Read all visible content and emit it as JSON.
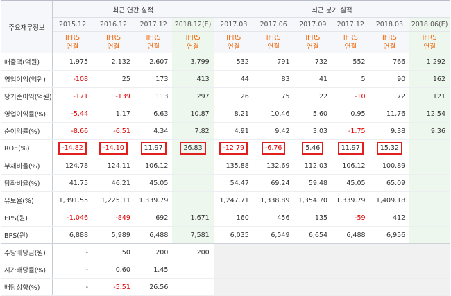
{
  "header": {
    "label": "주요재무정보",
    "annual_group": "최근 연간 실적",
    "quarterly_group": "최근 분기 실적",
    "ifrs_top": "IFRS",
    "ifrs_bottom": "연결"
  },
  "periods": [
    {
      "label": "2015.12",
      "est": false
    },
    {
      "label": "2016.12",
      "est": false
    },
    {
      "label": "2017.12",
      "est": false
    },
    {
      "label": "2018.12(E)",
      "est": true
    },
    {
      "label": "2017.03",
      "est": false
    },
    {
      "label": "2017.06",
      "est": false
    },
    {
      "label": "2017.09",
      "est": false
    },
    {
      "label": "2017.12",
      "est": false
    },
    {
      "label": "2018.03",
      "est": false
    },
    {
      "label": "2018.06(E)",
      "est": true
    }
  ],
  "rows": [
    {
      "label": "매출액(억원)",
      "values": [
        "1,975",
        "2,132",
        "2,607",
        "3,799",
        "532",
        "791",
        "732",
        "552",
        "766",
        "1,292"
      ],
      "group_end": false
    },
    {
      "label": "영업이익(억원)",
      "values": [
        "-108",
        "25",
        "173",
        "413",
        "44",
        "83",
        "41",
        "5",
        "90",
        "162"
      ],
      "group_end": false
    },
    {
      "label": "당기순이익(억원)",
      "values": [
        "-171",
        "-139",
        "113",
        "297",
        "26",
        "75",
        "22",
        "-10",
        "72",
        "121"
      ],
      "group_end": true
    },
    {
      "label": "영업이익률(%)",
      "values": [
        "-5.44",
        "1.17",
        "6.63",
        "10.87",
        "8.21",
        "10.46",
        "5.60",
        "0.95",
        "11.76",
        "12.54"
      ],
      "group_end": false
    },
    {
      "label": "순이익률(%)",
      "values": [
        "-8.66",
        "-6.51",
        "4.34",
        "7.82",
        "4.91",
        "9.42",
        "3.03",
        "-1.75",
        "9.38",
        "9.36"
      ],
      "group_end": false
    },
    {
      "label": "ROE(%)",
      "values": [
        "-14.82",
        "-14.10",
        "11.97",
        "26.83",
        "-12.79",
        "-6.76",
        "5.46",
        "11.97",
        "15.32",
        ""
      ],
      "group_end": true,
      "highlight": true
    },
    {
      "label": "부채비율(%)",
      "values": [
        "124.78",
        "124.11",
        "106.12",
        "",
        "135.88",
        "132.69",
        "112.03",
        "106.12",
        "100.89",
        ""
      ],
      "group_end": false
    },
    {
      "label": "당좌비율(%)",
      "values": [
        "41.75",
        "46.21",
        "45.05",
        "",
        "54.47",
        "69.24",
        "59.48",
        "45.05",
        "65.09",
        ""
      ],
      "group_end": false
    },
    {
      "label": "유보율(%)",
      "values": [
        "1,391.55",
        "1,225.11",
        "1,339.79",
        "",
        "1,247.71",
        "1,338.89",
        "1,354.70",
        "1,339.79",
        "1,409.18",
        ""
      ],
      "group_end": true
    },
    {
      "label": "EPS(원)",
      "values": [
        "-1,046",
        "-849",
        "692",
        "1,671",
        "160",
        "456",
        "135",
        "-59",
        "412",
        ""
      ],
      "group_end": false
    },
    {
      "label": "BPS(원)",
      "values": [
        "6,888",
        "5,989",
        "6,488",
        "7,581",
        "6,035",
        "6,549",
        "6,654",
        "6,488",
        "6,956",
        ""
      ],
      "group_end": true
    },
    {
      "label": "주당배당금(원)",
      "values": [
        "-",
        "50",
        "200",
        "200",
        "",
        "",
        "",
        "",
        "",
        ""
      ],
      "group_end": false,
      "gray_quarterly": true
    },
    {
      "label": "시가배당률(%)",
      "values": [
        "-",
        "0.60",
        "1.45",
        "",
        "",
        "",
        "",
        "",
        "",
        ""
      ],
      "group_end": false,
      "gray_quarterly": true
    },
    {
      "label": "배당성향(%)",
      "values": [
        "-",
        "-5.51",
        "26.56",
        "",
        "",
        "",
        "",
        "",
        "",
        ""
      ],
      "group_end": false,
      "gray_quarterly": true
    }
  ],
  "colors": {
    "negative": "#e00000",
    "ifrs": "#ee6a0f",
    "highlight_box": "#e21f1f",
    "estimate_bg": "#eef7ee"
  }
}
